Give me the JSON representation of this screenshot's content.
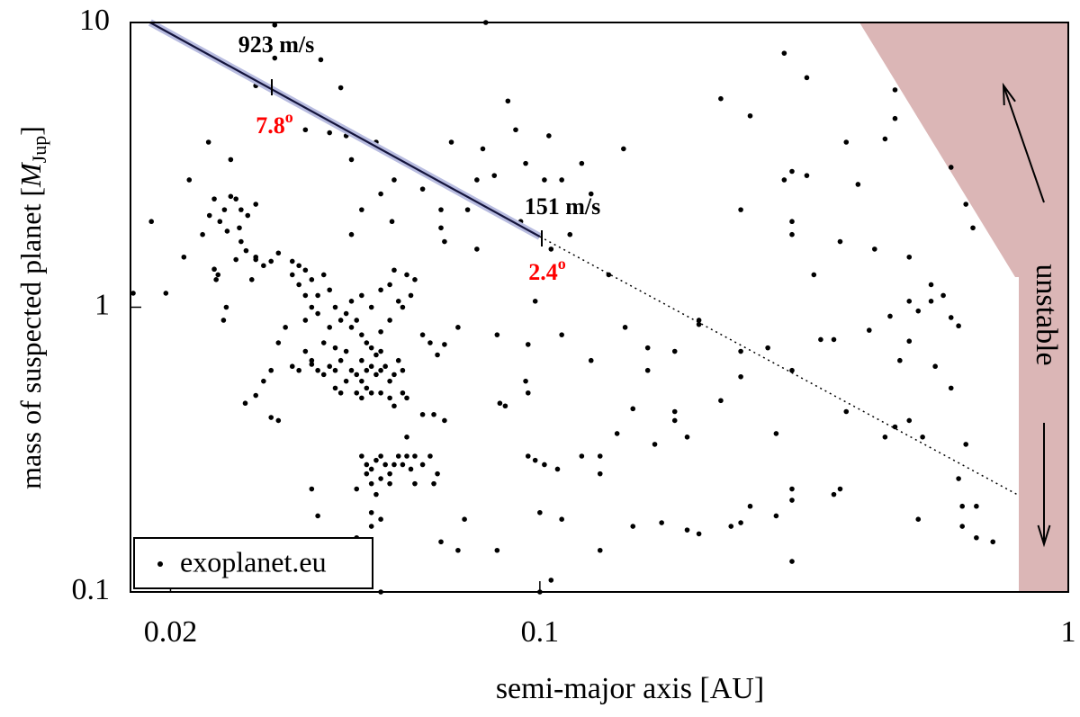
{
  "chart_data": {
    "type": "scatter",
    "xlabel": "semi-major axis [AU]",
    "ylabel": [
      "mass of suspected planet [",
      "M",
      "Jup",
      "]"
    ],
    "xscale": "log",
    "yscale": "log",
    "xlim": [
      0.0168,
      1
    ],
    "ylim": [
      0.1,
      10
    ],
    "xticks": [
      0.02,
      0.1,
      1
    ],
    "yticks": [
      0.1,
      1,
      10
    ],
    "legend": "lower left",
    "series": [
      {
        "name": "exoplanet.eu",
        "color": "#000000",
        "x": [
          0.034,
          0.035,
          0.036,
          0.037,
          0.038,
          0.039,
          0.037,
          0.036,
          0.038,
          0.04,
          0.041,
          0.042,
          0.04,
          0.043,
          0.044,
          0.045,
          0.046,
          0.047,
          0.043,
          0.042,
          0.041,
          0.04,
          0.039,
          0.038,
          0.037,
          0.036,
          0.035,
          0.034,
          0.044,
          0.045,
          0.046,
          0.047,
          0.048,
          0.049,
          0.05,
          0.051,
          0.052,
          0.053,
          0.049,
          0.05,
          0.048,
          0.046,
          0.045,
          0.046,
          0.047,
          0.048,
          0.05,
          0.052,
          0.053,
          0.043,
          0.042,
          0.041,
          0.055,
          0.056,
          0.055,
          0.054,
          0.05,
          0.052,
          0.055,
          0.057,
          0.058,
          0.056,
          0.054,
          0.06,
          0.062,
          0.033,
          0.032,
          0.031,
          0.03,
          0.032,
          0.031,
          0.03,
          0.029,
          0.034,
          0.035,
          0.036,
          0.039,
          0.041,
          0.044,
          0.046,
          0.048,
          0.05,
          0.052,
          0.053,
          0.046,
          0.047,
          0.048,
          0.049,
          0.05,
          0.051,
          0.052,
          0.053,
          0.054,
          0.055,
          0.056,
          0.057,
          0.058,
          0.06,
          0.062,
          0.064,
          0.063,
          0.05,
          0.048,
          0.047,
          0.049,
          0.052,
          0.045,
          0.048,
          0.0184,
          0.017,
          0.0196,
          0.0212,
          0.0217,
          0.023,
          0.0237,
          0.0242,
          0.0248,
          0.0253,
          0.0256,
          0.026,
          0.0266,
          0.0272,
          0.028,
          0.029,
          0.0242,
          0.0246,
          0.0244,
          0.0252,
          0.0236,
          0.026,
          0.027,
          0.0278,
          0.029,
          0.0266,
          0.0277,
          0.029,
          0.0255,
          0.0272,
          0.0285,
          0.0315,
          0.029,
          0.0315,
          0.0385,
          0.042,
          0.036,
          0.04,
          0.043,
          0.044,
          0.049,
          0.053,
          0.05,
          0.046,
          0.0525,
          0.044,
          0.06,
          0.065,
          0.065,
          0.066,
          0.068,
          0.073,
          0.076,
          0.076,
          0.078,
          0.079,
          0.082,
          0.087,
          0.09,
          0.094,
          0.092,
          0.102,
          0.11,
          0.104,
          0.12,
          0.125,
          0.114,
          0.135,
          0.144,
          0.105,
          0.098,
          0.095,
          0.094,
          0.095,
          0.086,
          0.084,
          0.083,
          0.07,
          0.064,
          0.066,
          0.063,
          0.066,
          0.06,
          0.056,
          0.11,
          0.125,
          0.145,
          0.16,
          0.16,
          0.15,
          0.14,
          0.12,
          0.108,
          0.098,
          0.102,
          0.095,
          0.13,
          0.13,
          0.18,
          0.18,
          0.2,
          0.2,
          0.18,
          0.165,
          0.19,
          0.22,
          0.24,
          0.24,
          0.27,
          0.3,
          0.28,
          0.3,
          0.3,
          0.25,
          0.23,
          0.24,
          0.28,
          0.3,
          0.2,
          0.19,
          0.17,
          0.15,
          0.13,
          0.11,
          0.1,
          0.105,
          0.1,
          0.05,
          0.032,
          0.031,
          0.037,
          0.038,
          0.037,
          0.048,
          0.05,
          0.045,
          0.065,
          0.07,
          0.072,
          0.083,
          0.058,
          0.22,
          0.25,
          0.24,
          0.29,
          0.3,
          0.29,
          0.3,
          0.3,
          0.32,
          0.32,
          0.33,
          0.34,
          0.36,
          0.37,
          0.38,
          0.4,
          0.43,
          0.45,
          0.47,
          0.47,
          0.5,
          0.42,
          0.46,
          0.48,
          0.5,
          0.52,
          0.5,
          0.55,
          0.58,
          0.6,
          0.62,
          0.56,
          0.6,
          0.38,
          0.47,
          0.5,
          0.36,
          0.37,
          0.52,
          0.64,
          0.62,
          0.63,
          0.63,
          0.67,
          0.72,
          0.67,
          0.64,
          0.66,
          0.6,
          0.55,
          0.45,
          0.53
        ],
        "values": [
          1.3,
          1.2,
          1.35,
          1.25,
          1.1,
          1.3,
          1.0,
          0.9,
          0.95,
          0.85,
          1.0,
          0.9,
          1.15,
          0.95,
          0.85,
          0.9,
          0.8,
          0.75,
          0.7,
          0.65,
          0.6,
          0.62,
          0.58,
          0.6,
          0.65,
          0.7,
          0.6,
          0.62,
          0.6,
          0.58,
          0.55,
          0.6,
          0.62,
          0.58,
          0.6,
          0.62,
          0.55,
          0.58,
          0.68,
          0.7,
          0.72,
          0.65,
          0.5,
          0.48,
          0.52,
          0.5,
          0.5,
          0.48,
          0.45,
          0.55,
          0.5,
          0.52,
          0.5,
          0.48,
          0.6,
          0.65,
          0.82,
          0.9,
          1.0,
          1.1,
          1.25,
          1.3,
          1.05,
          0.8,
          0.75,
          0.85,
          0.75,
          0.6,
          0.55,
          1.55,
          1.45,
          1.4,
          1.5,
          1.45,
          1.4,
          1.1,
          0.75,
          0.72,
          1.05,
          1.1,
          1.0,
          1.15,
          1.2,
          1.35,
          0.3,
          0.28,
          0.27,
          0.29,
          0.3,
          0.28,
          0.26,
          0.28,
          0.3,
          0.28,
          0.3,
          0.27,
          0.3,
          0.28,
          0.3,
          0.26,
          0.24,
          0.25,
          0.24,
          0.26,
          0.22,
          0.24,
          0.23,
          0.19,
          2.0,
          1.12,
          1.12,
          1.5,
          2.8,
          1.8,
          2.1,
          2.4,
          2.0,
          2.2,
          1.85,
          2.45,
          2.4,
          2.2,
          2.1,
          2.3,
          1.36,
          1.3,
          1.25,
          0.9,
          3.8,
          3.3,
          1.9,
          1.58,
          1.47,
          1.47,
          0.46,
          0.49,
          1.0,
          1.7,
          1.25,
          7.5,
          6.0,
          9.8,
          7.4,
          5.9,
          4.2,
          4.1,
          4.0,
          3.3,
          3.8,
          2.8,
          2.5,
          2.2,
          2.0,
          1.8,
          2.6,
          2.2,
          1.9,
          1.7,
          3.8,
          2.2,
          1.6,
          2.8,
          3.6,
          10,
          2.9,
          5.3,
          4.2,
          3.2,
          2.0,
          2.8,
          2.8,
          4.0,
          3.2,
          2.5,
          1.8,
          1.3,
          3.6,
          1.6,
          1.05,
          0.74,
          0.55,
          0.5,
          0.45,
          0.46,
          0.8,
          0.85,
          0.68,
          0.74,
          0.42,
          0.4,
          0.42,
          0.35,
          0.8,
          0.65,
          0.85,
          0.72,
          0.6,
          0.44,
          0.36,
          0.3,
          0.27,
          0.29,
          0.28,
          0.3,
          0.3,
          0.26,
          0.4,
          0.43,
          0.87,
          0.9,
          0.7,
          0.33,
          0.35,
          0.47,
          0.57,
          0.7,
          0.72,
          0.6,
          0.36,
          0.21,
          0.23,
          0.2,
          0.17,
          0.175,
          0.185,
          0.128,
          0.16,
          0.165,
          0.175,
          0.17,
          0.14,
          0.18,
          0.19,
          0.11,
          0.1,
          0.1,
          0.4,
          0.41,
          0.23,
          0.185,
          0.63,
          0.17,
          0.18,
          0.155,
          0.15,
          0.14,
          0.18,
          0.14,
          0.24,
          5.4,
          4.7,
          2.2,
          7.8,
          3.0,
          2.8,
          1.8,
          2.0,
          6.4,
          2.9,
          1.3,
          0.77,
          0.77,
          1.7,
          3.8,
          2.7,
          1.6,
          3.9,
          4.6,
          5.8,
          1.5,
          0.83,
          0.93,
          0.65,
          1.05,
          0.97,
          0.76,
          1.05,
          1.1,
          0.92,
          0.86,
          0.62,
          0.52,
          0.43,
          0.38,
          0.4,
          0.22,
          0.23,
          0.18,
          0.33,
          0.25,
          0.2,
          0.17,
          0.155,
          0.15,
          0.2,
          2.3,
          1.9,
          3.1,
          1.2,
          0.35,
          0.35
        ]
      }
    ],
    "lines": [
      {
        "style": "solid",
        "color": "#14143c",
        "x": [
          0.0183,
          0.1
        ],
        "values": [
          10,
          1.77
        ]
      },
      {
        "style": "dotted",
        "color": "#000000",
        "x": [
          0.1,
          0.8
        ],
        "values": [
          1.77,
          0.22
        ]
      }
    ],
    "annotations": [
      "923 m/s",
      "151 m/s"
    ],
    "angle_labels": [
      {
        "text": "7.8",
        "sup": "o",
        "color": "#ff0000"
      },
      {
        "text": "2.4",
        "sup": "o",
        "color": "#ff0000"
      }
    ],
    "region_label": "unstable",
    "region_color": "#dbb6b6"
  }
}
